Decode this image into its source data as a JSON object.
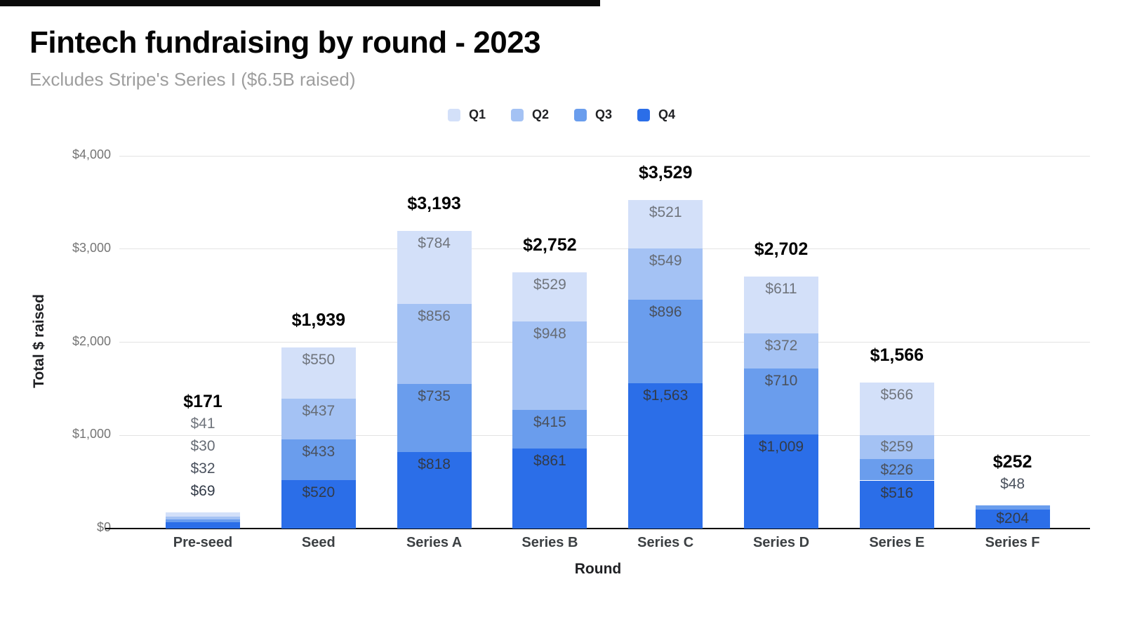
{
  "chart_data": {
    "type": "bar",
    "stacked": true,
    "title": "Fintech fundraising by round - 2023",
    "subtitle": "Excludes Stripe's Series I ($6.5B raised)",
    "xlabel": "Round",
    "ylabel": "Total $ raised",
    "ylim": [
      0,
      4000
    ],
    "ytick_labels": [
      "$0",
      "$1,000",
      "$2,000",
      "$3,000",
      "$4,000"
    ],
    "grid": "horizontal-gridlines-on",
    "legend_position": "top-center",
    "categories": [
      "Pre-seed",
      "Seed",
      "Series A",
      "Series B",
      "Series C",
      "Series D",
      "Series E",
      "Series F"
    ],
    "series": [
      {
        "name": "Q1",
        "color": "#d3e0f9",
        "label_color": "#70757d",
        "values": [
          41,
          550,
          784,
          529,
          521,
          611,
          566,
          0
        ]
      },
      {
        "name": "Q2",
        "color": "#a4c2f4",
        "label_color": "#666c75",
        "values": [
          30,
          437,
          856,
          948,
          549,
          372,
          259,
          0
        ]
      },
      {
        "name": "Q3",
        "color": "#6a9ded",
        "label_color": "#4a515d",
        "values": [
          32,
          433,
          735,
          415,
          896,
          710,
          226,
          48
        ]
      },
      {
        "name": "Q4",
        "color": "#2b6ee8",
        "label_color": "#333b48",
        "values": [
          69,
          520,
          818,
          861,
          1563,
          1009,
          516,
          204
        ]
      }
    ],
    "totals_display": [
      "$171",
      "$1,939",
      "$3,193",
      "$2,752",
      "$3,529",
      "$2,702",
      "$1,566",
      "$252"
    ],
    "segment_label_prefix": "$",
    "colors": {
      "background": "#ffffff",
      "axis_line": "#000000",
      "gridline": "#e3e3e3",
      "ytick_label": "#757575",
      "category_label": "#3c4043",
      "total_label": "#000000",
      "title": "#050505",
      "subtitle": "#9e9e9e"
    }
  }
}
